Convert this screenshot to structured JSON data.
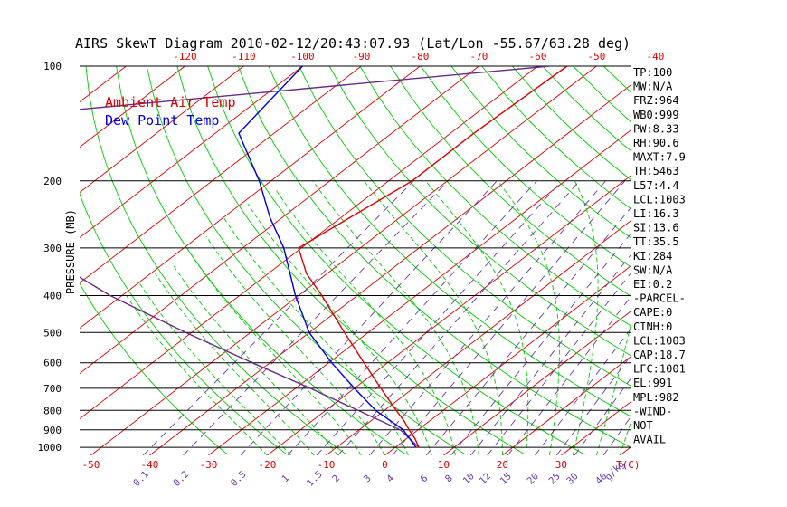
{
  "chart_data": {
    "type": "line",
    "title": "AIRS SkewT Diagram 2010-02-12/20:43:07.93 (Lat/Lon -55.67/63.28 deg)",
    "ylabel": "PRESSURE (MB)",
    "xlabel": "T(C)",
    "mixing_unit_label": "g/kg",
    "pressure_levels": [
      100,
      200,
      300,
      400,
      500,
      600,
      700,
      800,
      900,
      1000
    ],
    "pressure_range": [
      100,
      1050
    ],
    "top_temp_ticks": [
      "-120",
      "-110",
      "-100",
      "-90",
      "-80",
      "-70",
      "-60",
      "-50",
      "-40"
    ],
    "bottom_temp_ticks": [
      "-50",
      "-40",
      "-30",
      "-20",
      "-10",
      "0",
      "10",
      "20",
      "30"
    ],
    "mixing_ratio_labels": [
      "0.1",
      "0.2",
      "0.5",
      "1",
      "1.5",
      "2",
      "3",
      "4",
      "6",
      "8",
      "10",
      "12",
      "15",
      "20",
      "25",
      "30",
      "40"
    ],
    "legend": [
      {
        "name": "Ambient Air Temp",
        "color": "#dd0000"
      },
      {
        "name": "Dew Point Temp",
        "color": "#0000dd"
      }
    ],
    "series": [
      {
        "name": "Ambient Air Temp",
        "color": "#dd0000",
        "points": [
          {
            "p": 1000,
            "t": 4.0
          },
          {
            "p": 950,
            "t": 1.5
          },
          {
            "p": 900,
            "t": -1.5
          },
          {
            "p": 850,
            "t": -4.5
          },
          {
            "p": 800,
            "t": -8.0
          },
          {
            "p": 700,
            "t": -15.5
          },
          {
            "p": 600,
            "t": -24.0
          },
          {
            "p": 500,
            "t": -34.0
          },
          {
            "p": 400,
            "t": -46.0
          },
          {
            "p": 350,
            "t": -53.5
          },
          {
            "p": 300,
            "t": -60.5
          },
          {
            "p": 250,
            "t": -58.5
          },
          {
            "p": 200,
            "t": -56.0
          },
          {
            "p": 150,
            "t": -56.0
          },
          {
            "p": 100,
            "t": -55.0
          }
        ]
      },
      {
        "name": "Dew Point Temp",
        "color": "#0000dd",
        "points": [
          {
            "p": 1000,
            "t": 3.5
          },
          {
            "p": 900,
            "t": -2.5
          },
          {
            "p": 800,
            "t": -11.5
          },
          {
            "p": 700,
            "t": -20.0
          },
          {
            "p": 600,
            "t": -29.5
          },
          {
            "p": 500,
            "t": -40.0
          },
          {
            "p": 400,
            "t": -50.5
          },
          {
            "p": 300,
            "t": -63.0
          },
          {
            "p": 250,
            "t": -72.0
          },
          {
            "p": 200,
            "t": -82.0
          },
          {
            "p": 150,
            "t": -96.0
          },
          {
            "p": 100,
            "t": -100.0
          }
        ]
      }
    ],
    "parcel_path": {
      "color": "#6a2a8a",
      "points": [
        {
          "p": 1000,
          "t": 4.0
        },
        {
          "p": 900,
          "t": -3.0
        },
        {
          "p": 800,
          "t": -14.5
        },
        {
          "p": 700,
          "t": -27.5
        },
        {
          "p": 600,
          "t": -43.0
        },
        {
          "p": 500,
          "t": -61.0
        },
        {
          "p": 400,
          "t": -82.0
        },
        {
          "p": 300,
          "t": -106.0
        },
        {
          "p": 250,
          "t": -119.0
        },
        {
          "p": 200,
          "t": -133.0
        },
        {
          "p": 150,
          "t": -146.5
        },
        {
          "p": 140,
          "t": -148.5
        },
        {
          "p": 100,
          "t": -58.0
        }
      ]
    }
  },
  "indices": [
    "TP:100",
    "MW:N/A",
    "FRZ:964",
    "WB0:999",
    "PW:8.33",
    "RH:90.6",
    "MAXT:7.9",
    "TH:5463",
    "L57:4.4",
    "LCL:1003",
    "LI:16.3",
    "SI:13.6",
    "TT:35.5",
    "KI:284",
    "SW:N/A",
    "EI:0.2",
    "-PARCEL-",
    "CAPE:0",
    "CINH:0",
    "LCL:1003",
    "CAP:18.7",
    "LFC:1001",
    "EL:991",
    "MPL:982",
    "-WIND-",
    "NOT",
    "AVAIL"
  ],
  "colors": {
    "isotherm": "#dd0000",
    "dry_adiabat": "#00cc00",
    "moist_adiabat": "#00cc00",
    "mixing_ratio": "#6a3aaa",
    "isobar": "#000000"
  }
}
